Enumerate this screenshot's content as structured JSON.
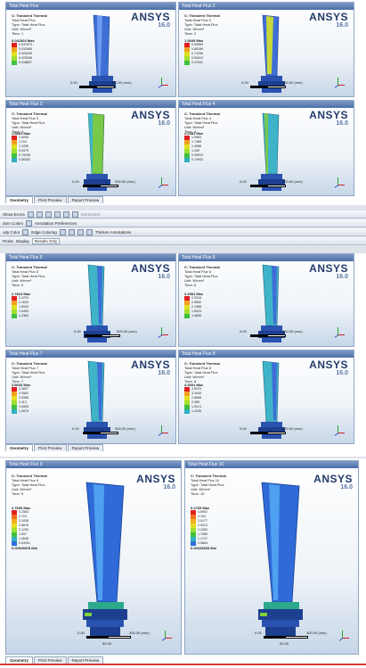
{
  "colors": {
    "red_outline": "#d23b3b",
    "accent": "#4c6fa8",
    "blade_blue": "#3d6fd6",
    "blade_green": "#78c84a",
    "blade_teal": "#3fb4c8"
  },
  "logo": {
    "name": "ANSYS",
    "version": "16.0"
  },
  "common": {
    "analysis": "C: Transient Thermal",
    "type": "Type: Total Heat Flux",
    "unit": "Unit: W/mm²",
    "scale_left": "0.00",
    "scale_right": "300.00 (mm)",
    "scale_mid": "50.00"
  },
  "panels": [
    {
      "window_title": "Total Heat Flux",
      "result": "Total Heat Flux",
      "time": "Time: 1",
      "max": "0.042303 Max",
      "levels": [
        "0.037674",
        "0.032965",
        "0.028255",
        "0.023546",
        "0.018837"
      ]
    },
    {
      "window_title": "Total Heat Flux 2",
      "result": "Total Heat Flux 2",
      "time": "Time: 2",
      "max": "1.0695 Max",
      "levels": [
        "0.95969",
        "0.85189",
        "0.71296",
        "0.59413",
        "0.47541"
      ]
    },
    {
      "window_title": "Total Heat Flux 3",
      "result": "Total Heat Flux 3",
      "time": "Time: 3",
      "max": "1.6881 Max",
      "levels": [
        "1.5005",
        "1.313",
        "1.1255",
        "0.9379",
        "0.75036",
        "0.56282"
      ]
    },
    {
      "window_title": "Total Heat Flux 4",
      "result": "Total Heat Flux 4",
      "time": "Time: 4",
      "max": "2.2481 Max",
      "levels": [
        "1.9983",
        "1.7485",
        "1.4988",
        "1.249",
        "0.99919",
        "0.74941"
      ]
    },
    {
      "window_title": "Total Heat Flux 5",
      "result": "Total Heat Flux 5",
      "time": "Time: 5",
      "max": "2.7813 Max",
      "levels": [
        "2.4723",
        "2.1633",
        "1.8543",
        "1.5453",
        "1.2363"
      ]
    },
    {
      "window_title": "Total Heat Flux 6",
      "result": "Total Heat Flux 6",
      "time": "Time: 6",
      "max": "3.2981 Max",
      "levels": [
        "2.9316",
        "2.5652",
        "2.1988",
        "1.8324",
        "1.4659"
      ]
    },
    {
      "window_title": "Total Heat Flux 7",
      "result": "Total Heat Flux 7",
      "time": "Time: 7",
      "max": "3.8033 Max",
      "levels": [
        "3.3807",
        "2.9582",
        "2.5356",
        "2.113",
        "1.6905",
        "1.2679"
      ]
    },
    {
      "window_title": "Total Heat Flux 8",
      "result": "Total Heat Flux 8",
      "time": "Time: 8",
      "max": "4.3001 Max",
      "levels": [
        "3.8223",
        "3.3445",
        "2.8668",
        "2.389",
        "1.9113",
        "1.4335"
      ]
    },
    {
      "window_title": "Total Heat Flux 9",
      "result": "Total Heat Flux 9",
      "time": "Time: 9",
      "max": "4.7605 Max",
      "min": "0.00025878 Min",
      "levels": [
        "4.2583",
        "3.724",
        "3.1938",
        "2.6615",
        "2.1293",
        "1.597",
        "1.0648",
        "0.53251"
      ]
    },
    {
      "window_title": "Total Heat Flux 10",
      "result": "Total Heat Flux 10",
      "time": "Time: 10",
      "max": "5.2765 Max",
      "min": "0.00033539 Min",
      "levels": [
        "4.6992",
        "4.104",
        "3.5177",
        "2.9314",
        "2.3452",
        "1.7589",
        "1.1727",
        "0.5864"
      ]
    }
  ],
  "tabs": [
    "Geometry",
    "Print Preview",
    "Report Preview"
  ],
  "toolbar": {
    "show_errors": "Show Errors",
    "worksheet": "Worksheet",
    "random_colors": "dom Colors",
    "annotation_prefs": "Annotation Preferences",
    "body_color": "ody Color",
    "edge_coloring": "Edge Coloring",
    "thicken_annotations": "Thicken Annotations",
    "probe": "Probe",
    "display": "Display",
    "results_only": "Results Only"
  }
}
